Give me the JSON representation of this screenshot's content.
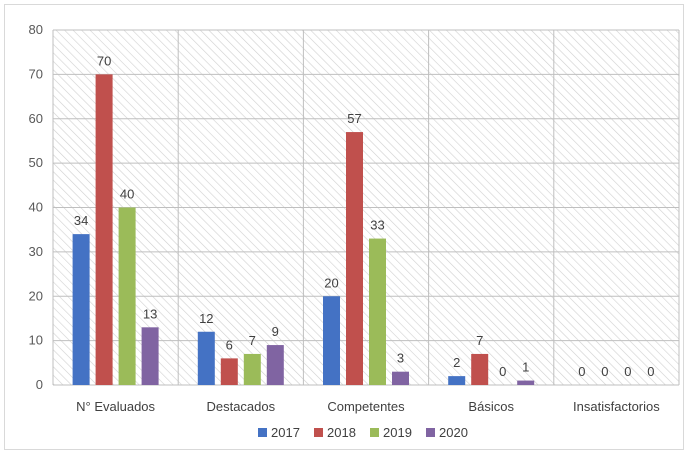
{
  "chart_data": {
    "type": "bar",
    "title": "",
    "xlabel": "",
    "ylabel": "",
    "categories": [
      "N° Evaluados",
      "Destacados",
      "Competentes",
      "Básicos",
      "Insatisfactorios"
    ],
    "series": [
      {
        "name": "2017",
        "color": "#4472C4",
        "values": [
          34,
          12,
          20,
          2,
          0
        ]
      },
      {
        "name": "2018",
        "color": "#C0504D",
        "values": [
          70,
          6,
          57,
          7,
          0
        ]
      },
      {
        "name": "2019",
        "color": "#9BBB59",
        "values": [
          40,
          7,
          33,
          0,
          0
        ]
      },
      {
        "name": "2020",
        "color": "#8064A2",
        "values": [
          13,
          9,
          3,
          1,
          0
        ]
      }
    ],
    "ylim": [
      0,
      80
    ],
    "yticks": [
      0,
      10,
      20,
      30,
      40,
      50,
      60,
      70,
      80
    ],
    "grid": true,
    "data_labels": true,
    "legend_position": "bottom"
  }
}
